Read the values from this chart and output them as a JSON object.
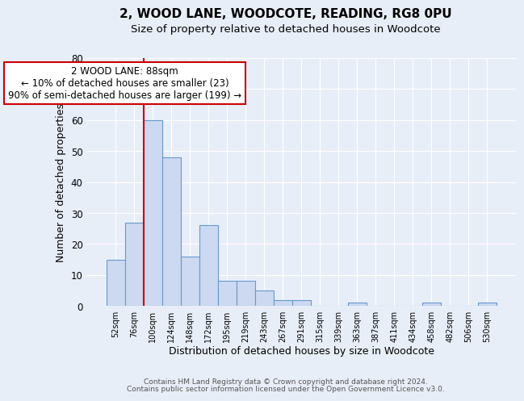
{
  "title": "2, WOOD LANE, WOODCOTE, READING, RG8 0PU",
  "subtitle": "Size of property relative to detached houses in Woodcote",
  "xlabel": "Distribution of detached houses by size in Woodcote",
  "ylabel": "Number of detached properties",
  "bar_labels": [
    "52sqm",
    "76sqm",
    "100sqm",
    "124sqm",
    "148sqm",
    "172sqm",
    "195sqm",
    "219sqm",
    "243sqm",
    "267sqm",
    "291sqm",
    "315sqm",
    "339sqm",
    "363sqm",
    "387sqm",
    "411sqm",
    "434sqm",
    "458sqm",
    "482sqm",
    "506sqm",
    "530sqm"
  ],
  "bar_values": [
    15,
    27,
    60,
    48,
    16,
    26,
    8,
    8,
    5,
    2,
    2,
    0,
    0,
    1,
    0,
    0,
    0,
    1,
    0,
    0,
    1
  ],
  "bar_color": "#ccd9f0",
  "bar_edge_color": "#6699cc",
  "ylim": [
    0,
    80
  ],
  "yticks": [
    0,
    10,
    20,
    30,
    40,
    50,
    60,
    70,
    80
  ],
  "red_line_x": 1.5,
  "annotation_text": "2 WOOD LANE: 88sqm\n← 10% of detached houses are smaller (23)\n90% of semi-detached houses are larger (199) →",
  "annotation_box_color": "#ffffff",
  "annotation_box_edge": "#cc0000",
  "footer_line1": "Contains HM Land Registry data © Crown copyright and database right 2024.",
  "footer_line2": "Contains public sector information licensed under the Open Government Licence v3.0.",
  "background_color": "#e8eef8",
  "grid_color": "#ffffff",
  "title_fontsize": 11,
  "subtitle_fontsize": 9.5
}
